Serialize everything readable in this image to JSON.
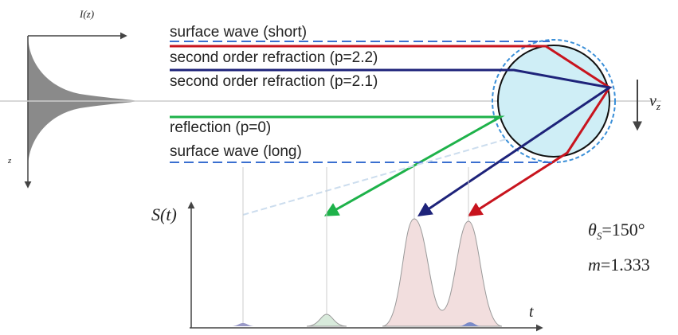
{
  "left_axis": {
    "x_label": "I(z)",
    "y_label": "z"
  },
  "rays": [
    {
      "label": "surface wave (short)"
    },
    {
      "label": "second order refraction (p=2.2)"
    },
    {
      "label": "second order refraction (p=2.1)"
    },
    {
      "label": "reflection (p=0)"
    },
    {
      "label": "surface wave (long)"
    }
  ],
  "velocity": {
    "symbol": "v",
    "subscript": "z"
  },
  "signal": {
    "y_label": "S(t)",
    "x_label": "t"
  },
  "parameters": [
    {
      "symbol": "θ",
      "subscript": "S",
      "value": "=150°"
    },
    {
      "symbol": "m",
      "value": "=1.333"
    }
  ]
}
